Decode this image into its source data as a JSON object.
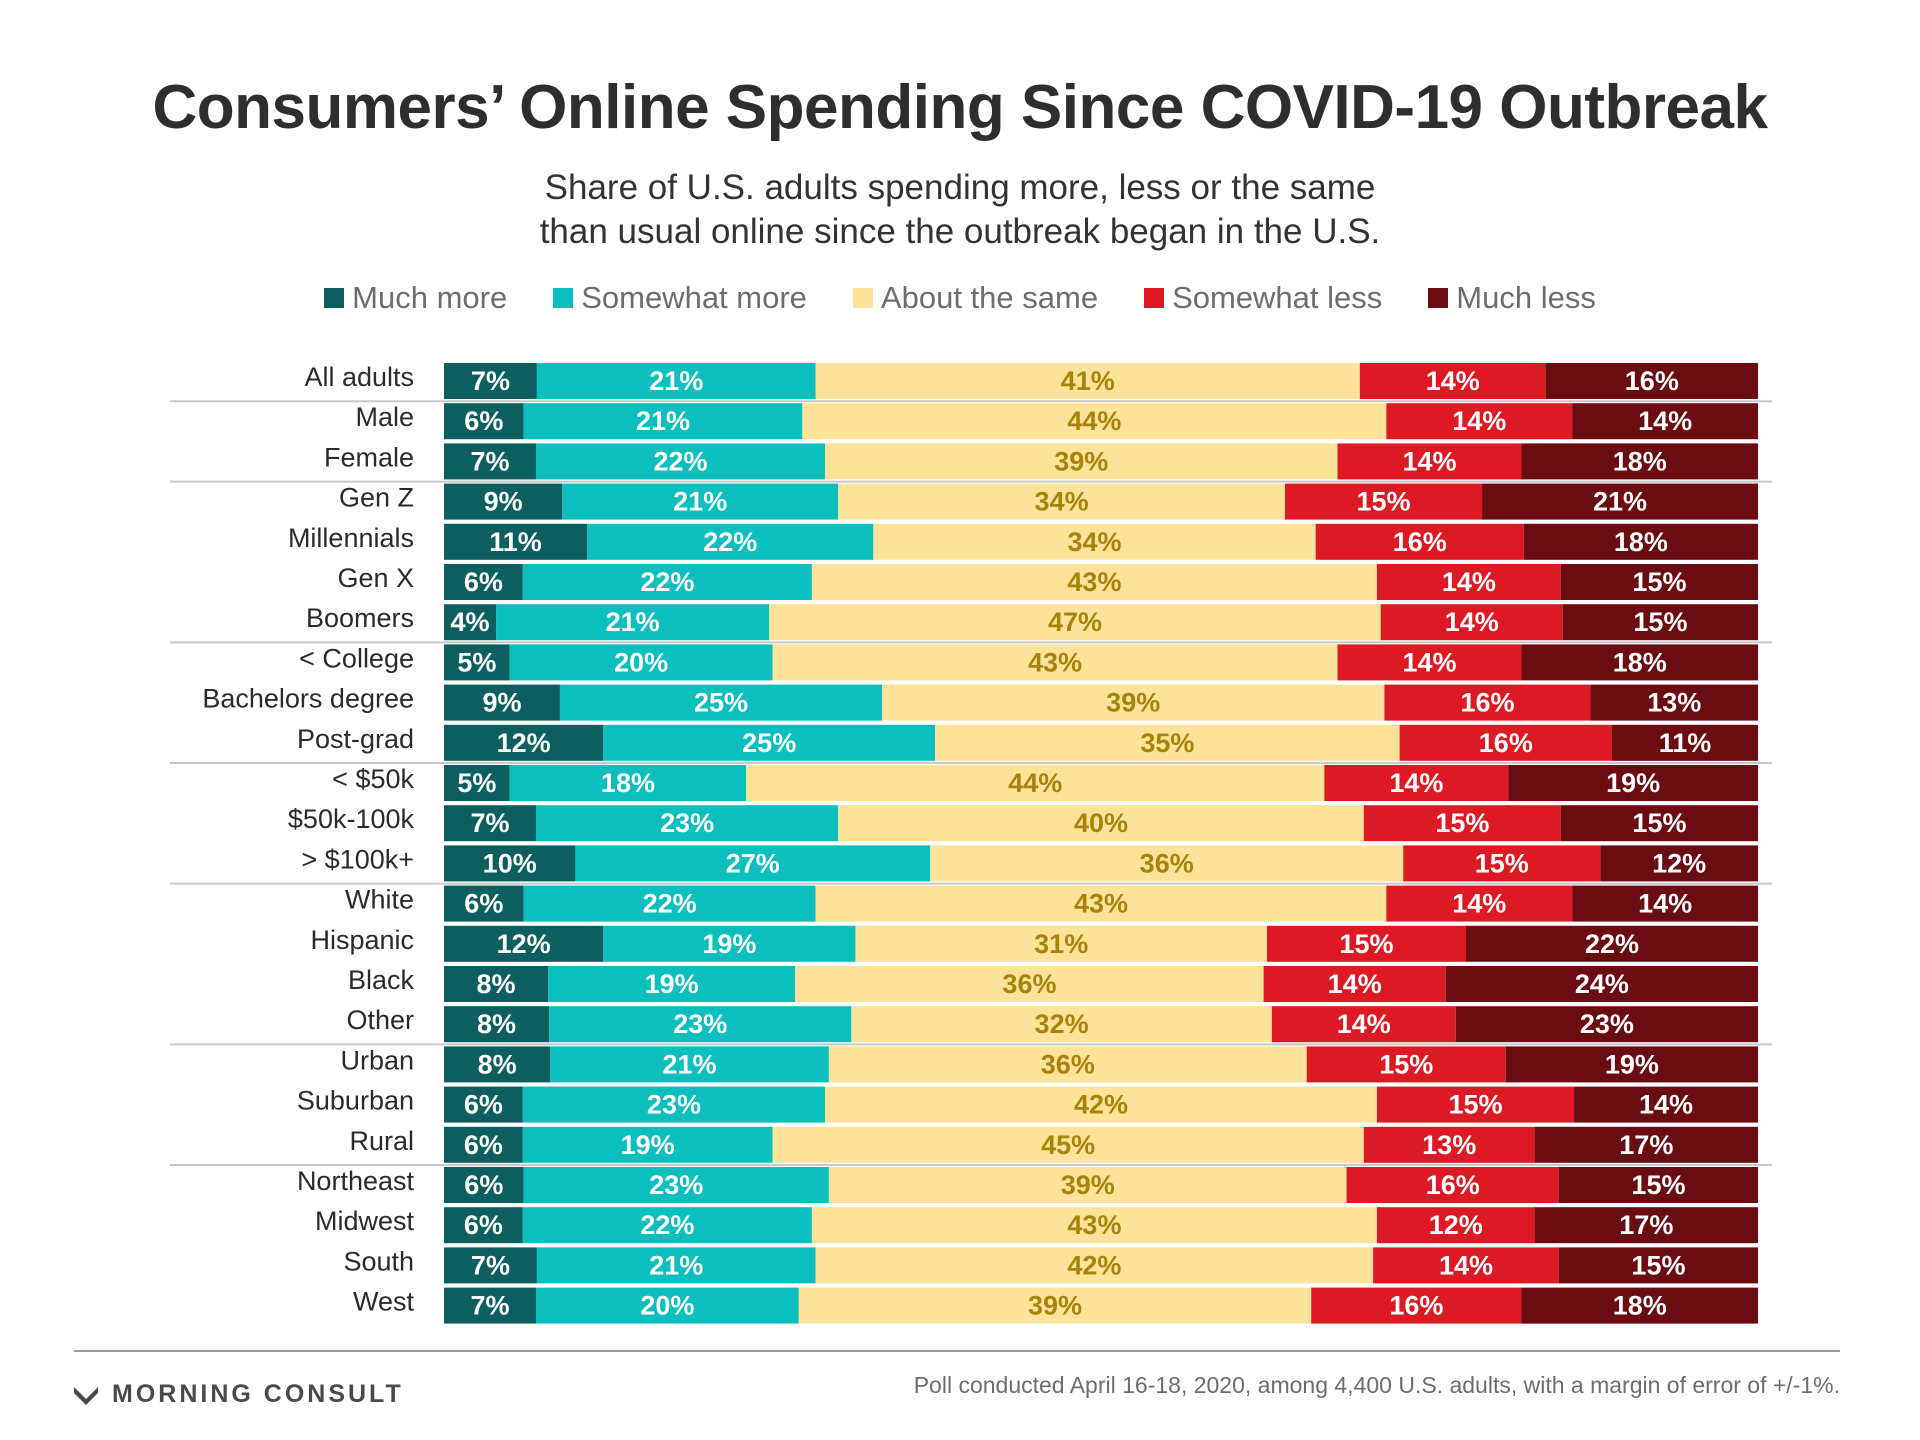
{
  "title": "Consumers’ Online Spending Since COVID-19 Outbreak",
  "subtitle_lines": [
    "Share of U.S. adults spending more, less or the same",
    "than usual online since the outbreak began in the U.S."
  ],
  "footnote": "Poll conducted April 16-18, 2020, among 4,400 U.S. adults, with a margin of error of +/-1%.",
  "logo_text": "MORNING CONSULT",
  "colors": {
    "much_more": "#0d5f5f",
    "somewhat_more": "#0bbfbf",
    "about_same": "#fde39a",
    "somewhat_less": "#dd1a23",
    "much_less": "#6b0c12",
    "label_dark_bg": "#ffffff",
    "label_light_bg": "#a9820a",
    "divider": "#c8c8c8"
  },
  "chart_data": {
    "type": "bar",
    "orientation": "horizontal",
    "stacked": true,
    "legend_position": "top",
    "xlim": [
      0,
      100
    ],
    "categories": [
      "All adults",
      "Male",
      "Female",
      "Gen Z",
      "Millennials",
      "Gen X",
      "Boomers",
      "< College",
      "Bachelors degree",
      "Post-grad",
      "< $50k",
      "$50k-100k",
      "> $100k+",
      "White",
      "Hispanic",
      "Black",
      "Other",
      "Urban",
      "Suburban",
      "Rural",
      "Northeast",
      "Midwest",
      "South",
      "West"
    ],
    "group_breaks_after": [
      0,
      2,
      6,
      9,
      12,
      16,
      19
    ],
    "series": [
      {
        "name": "Much more",
        "values": [
          7,
          6,
          7,
          9,
          11,
          6,
          4,
          5,
          9,
          12,
          5,
          7,
          10,
          6,
          12,
          8,
          8,
          8,
          6,
          6,
          6,
          6,
          7,
          7
        ]
      },
      {
        "name": "Somewhat more",
        "values": [
          21,
          21,
          22,
          21,
          22,
          22,
          21,
          20,
          25,
          25,
          18,
          23,
          27,
          22,
          19,
          19,
          23,
          21,
          23,
          19,
          23,
          22,
          21,
          20
        ]
      },
      {
        "name": "About the same",
        "values": [
          41,
          44,
          39,
          34,
          34,
          43,
          47,
          43,
          39,
          35,
          44,
          40,
          36,
          43,
          31,
          36,
          32,
          36,
          42,
          45,
          39,
          43,
          42,
          39
        ]
      },
      {
        "name": "Somewhat less",
        "values": [
          14,
          14,
          14,
          15,
          16,
          14,
          14,
          14,
          16,
          16,
          14,
          15,
          15,
          14,
          15,
          14,
          14,
          15,
          15,
          13,
          16,
          12,
          14,
          16
        ]
      },
      {
        "name": "Much less",
        "values": [
          16,
          14,
          18,
          21,
          18,
          15,
          15,
          18,
          13,
          11,
          19,
          15,
          12,
          14,
          22,
          24,
          23,
          19,
          14,
          17,
          15,
          17,
          15,
          18
        ]
      }
    ]
  }
}
